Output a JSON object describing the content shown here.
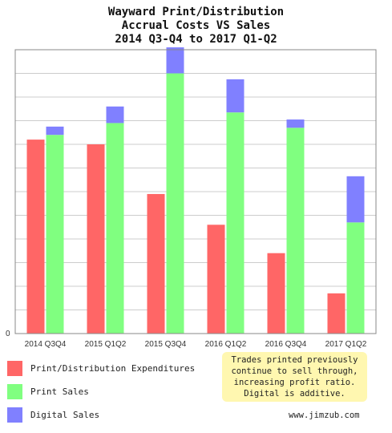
{
  "title": {
    "line1": "Wayward Print/Distribution",
    "line2": "Accrual Costs VS Sales",
    "line3": "2014 Q3-Q4 to 2017 Q1-Q2"
  },
  "chart_data": {
    "type": "bar",
    "stacked_series": "Digital Sales stacks on Print Sales",
    "categories": [
      "2014 Q3Q4",
      "2015 Q1Q2",
      "2015 Q3Q4",
      "2016 Q1Q2",
      "2016 Q3Q4",
      "2017 Q1Q2"
    ],
    "y_tick_labels_shown": [
      "0"
    ],
    "ylim": [
      0,
      12
    ],
    "grid": true,
    "series": [
      {
        "name": "Print/Distribution Expenditures",
        "color": "#ff6666",
        "values": [
          8.2,
          8.0,
          5.9,
          4.6,
          3.4,
          1.7
        ]
      },
      {
        "name": "Print Sales",
        "color": "#80ff80",
        "values": [
          8.4,
          8.9,
          11.0,
          9.35,
          8.7,
          4.7
        ]
      },
      {
        "name": "Digital Sales",
        "color": "#8080ff",
        "values": [
          0.35,
          0.7,
          1.1,
          1.4,
          0.35,
          1.95
        ]
      }
    ]
  },
  "legend": {
    "items": [
      {
        "label": "Print/Distribution Expenditures",
        "color": "#ff6666"
      },
      {
        "label": "Print Sales",
        "color": "#80ff80"
      },
      {
        "label": "Digital Sales",
        "color": "#8080ff"
      }
    ]
  },
  "note": {
    "line1": "Trades printed previously",
    "line2": "continue to sell through,",
    "line3": "increasing profit ratio.",
    "line4": "Digital is additive."
  },
  "url": "www.jimzub.com"
}
